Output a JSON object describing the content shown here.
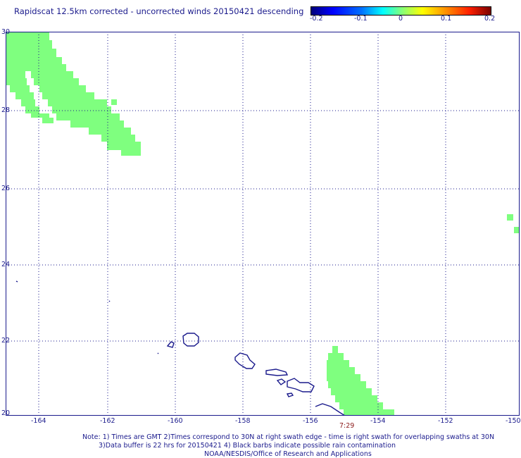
{
  "title": "Rapidscat 12.5km corrected - uncorrected winds 20150421 descending",
  "colorbar": {
    "ticks": [
      "-0.2",
      "-0.1",
      "0",
      "0.1",
      "0.2"
    ]
  },
  "map": {
    "lon_ticks": [
      "-164",
      "-162",
      "-160",
      "-158",
      "-156",
      "-154",
      "-152",
      "-150"
    ],
    "lat_ticks": [
      "30",
      "28",
      "26",
      "24",
      "22",
      "20"
    ],
    "time_label": "7:29",
    "swath_color": "#7fff7f",
    "coast_color": "#1a1a8c"
  },
  "notes": {
    "line1": "Note: 1) Times are GMT 2)Times correspond to 30N at right swath edge - time is right swath for overlapping swaths at 30N",
    "line2": "3)Data buffer is 22 hrs for 20150421 4) Black barbs indicate possible rain contamination",
    "line3": "NOAA/NESDIS/Office of Research and Applications"
  }
}
